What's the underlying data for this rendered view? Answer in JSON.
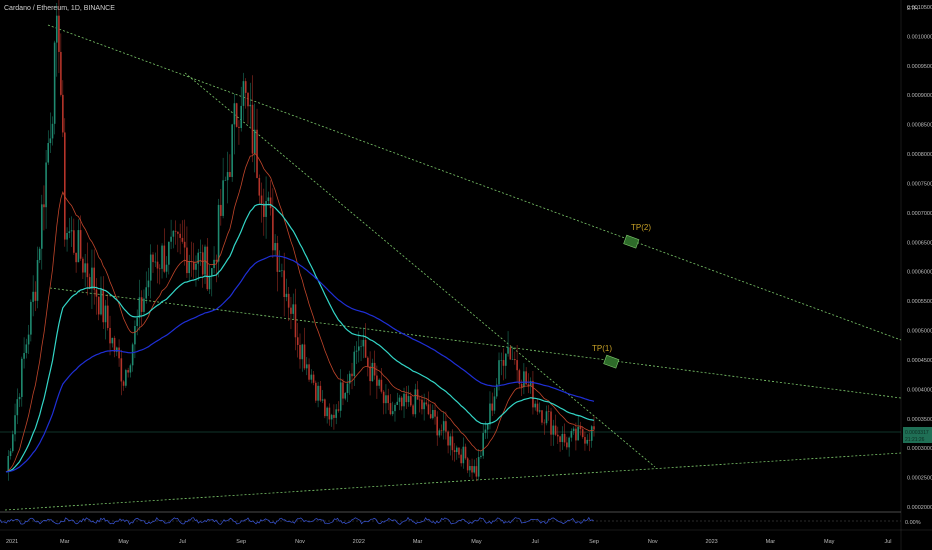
{
  "header": {
    "title": "Cardano / Ethereum, 1D, BINANCE"
  },
  "axis": {
    "currency": "ETH",
    "osc_label": "0.00%"
  },
  "price_tag": {
    "value": "0.0003317",
    "countdown": "21:21:26"
  },
  "colors": {
    "background": "#000000",
    "candle_up": "#1f8a70",
    "candle_down": "#b5342a",
    "ema_fast": "#c0452a",
    "ema_mid": "#33d6c7",
    "ema_slow": "#1f2fd6",
    "trendline": "#7cc86b",
    "target_label": "#c9a227",
    "oscillator": "#3a56d8"
  },
  "chart_data": {
    "type": "line",
    "title": "Cardano / Ethereum, 1D, BINANCE",
    "ylabel": "ETH",
    "ylim": [
      0.0002,
      0.00105
    ],
    "y_ticks": [
      0.00105,
      0.001,
      0.00095,
      0.0009,
      0.00085,
      0.0008,
      0.00075,
      0.0007,
      0.00065,
      0.0006,
      0.00055,
      0.0005,
      0.00045,
      0.0004,
      0.00035,
      0.0003,
      0.00025,
      0.0002
    ],
    "x_labels": [
      "2021",
      "Mar",
      "May",
      "Jul",
      "Sep",
      "Nov",
      "2022",
      "Mar",
      "May",
      "Jul",
      "Sep",
      "Nov",
      "2023",
      "Mar",
      "May",
      "Jul"
    ],
    "price_path": [
      {
        "x": "2021-01",
        "y": 0.00026
      },
      {
        "x": "2021-02",
        "y": 0.00058
      },
      {
        "x": "2021-02-25",
        "y": 0.00102
      },
      {
        "x": "2021-03",
        "y": 0.00068
      },
      {
        "x": "2021-04",
        "y": 0.00058
      },
      {
        "x": "2021-05",
        "y": 0.00042
      },
      {
        "x": "2021-06",
        "y": 0.00062
      },
      {
        "x": "2021-07",
        "y": 0.00064
      },
      {
        "x": "2021-08",
        "y": 0.0006
      },
      {
        "x": "2021-09",
        "y": 0.00092
      },
      {
        "x": "2021-10",
        "y": 0.00068
      },
      {
        "x": "2021-11",
        "y": 0.00048
      },
      {
        "x": "2021-12",
        "y": 0.00034
      },
      {
        "x": "2022-01",
        "y": 0.00048
      },
      {
        "x": "2022-02",
        "y": 0.00036
      },
      {
        "x": "2022-03",
        "y": 0.00038
      },
      {
        "x": "2022-05",
        "y": 0.00026
      },
      {
        "x": "2022-06",
        "y": 0.00048
      },
      {
        "x": "2022-07",
        "y": 0.00038
      },
      {
        "x": "2022-08",
        "y": 0.00031
      },
      {
        "x": "2022-09",
        "y": 0.00033
      }
    ],
    "targets": [
      {
        "label": "TP(1)",
        "y": 0.00046
      },
      {
        "label": "TP(2)",
        "y": 0.00066
      }
    ],
    "last_price": 0.0003317
  }
}
